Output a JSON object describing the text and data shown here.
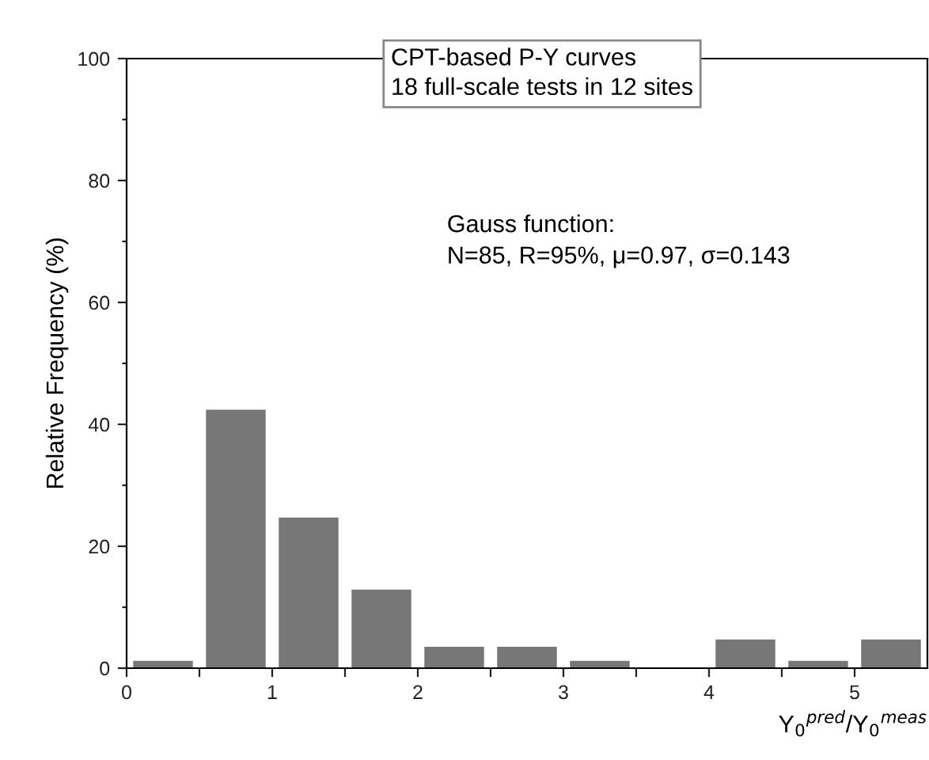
{
  "chart_data": {
    "type": "histogram",
    "bins": [
      0,
      0.5,
      1,
      1.5,
      2,
      2.5,
      3,
      3.5,
      4,
      4.5,
      5,
      5.5
    ],
    "values": [
      1.2,
      42.4,
      24.7,
      12.9,
      3.5,
      3.5,
      1.2,
      0,
      4.7,
      1.2,
      4.7
    ],
    "color": "#777777",
    "xlabel": "Y$_{0}$$^{pred}$/Y$_{0}$$^{meas}$",
    "ylabel": "Relative Frequency (%)",
    "xlim": [
      0,
      5.5
    ],
    "ylim": [
      0,
      100
    ],
    "xticks": [
      0,
      {
        "value": 0.5,
        "label": null
      },
      1,
      {
        "value": 1.5,
        "label": null
      },
      2,
      {
        "value": 2.5,
        "label": null
      },
      3,
      {
        "value": 3.5,
        "label": null
      },
      4,
      {
        "value": 4.5,
        "label": null
      },
      5
    ],
    "yticks": [
      0,
      {
        "value": 10,
        "label": null
      },
      20,
      {
        "value": 30,
        "label": null
      },
      40,
      {
        "value": 50,
        "label": null
      },
      60,
      {
        "value": 70,
        "label": null
      },
      80,
      {
        "value": 90,
        "label": null
      },
      100
    ],
    "annotations": [
      "CPT-based P-Y curves\n18 full-scale tests in 12 sites",
      "Gauss function:\nN=85, R=95%, μ=0.97, σ=0.143"
    ],
    "grid": false,
    "legend": false
  }
}
